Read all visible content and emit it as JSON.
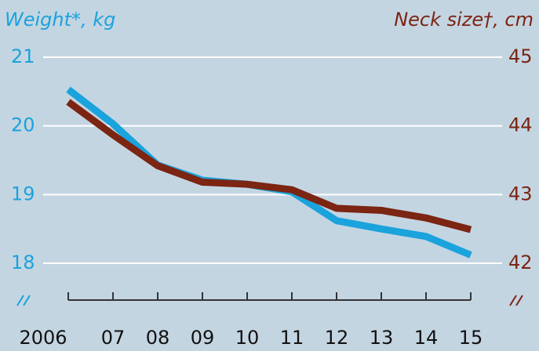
{
  "chart_data": {
    "type": "line",
    "y_title": "Weight*, kg",
    "y2_title": "Neck size†, cm",
    "categories": [
      "2006",
      "07",
      "08",
      "09",
      "10",
      "11",
      "12",
      "13",
      "14",
      "15"
    ],
    "series": [
      {
        "name": "Weight*, kg",
        "color": "#1aa3dc",
        "values": [
          20.53,
          20.03,
          19.43,
          19.21,
          19.15,
          19.04,
          18.62,
          18.5,
          18.39,
          18.12
        ]
      },
      {
        "name": "Neck size†, cm",
        "color": "#7b2512",
        "axis": "y2",
        "values": [
          44.35,
          43.87,
          43.42,
          43.18,
          43.15,
          43.07,
          42.8,
          42.77,
          42.66,
          42.49
        ]
      }
    ],
    "ylim": [
      18,
      21
    ],
    "yticks": [
      18,
      19,
      20,
      21
    ],
    "y2lim": [
      42,
      45
    ],
    "y2ticks": [
      42,
      43,
      44,
      45
    ],
    "grid": true
  }
}
